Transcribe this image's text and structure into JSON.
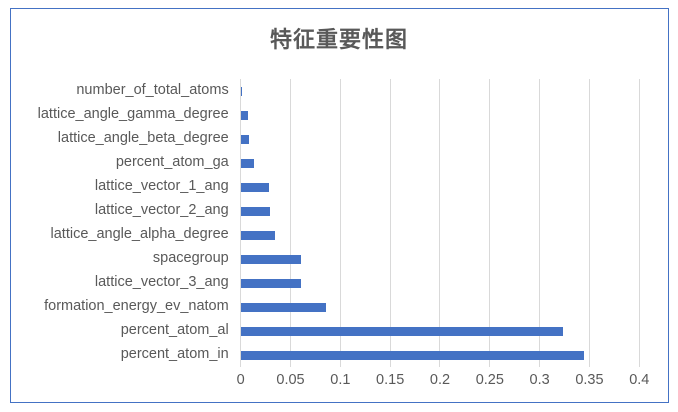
{
  "chart_data": {
    "type": "bar",
    "orientation": "horizontal",
    "title": "特征重要性图",
    "xlabel": "",
    "ylabel": "",
    "xlim": [
      0,
      0.4
    ],
    "x_ticks": [
      "0",
      "0.05",
      "0.1",
      "0.15",
      "0.2",
      "0.25",
      "0.3",
      "0.35",
      "0.4"
    ],
    "grid": "vertical",
    "legend": "none",
    "bar_color": "#4472c4",
    "categories": [
      "number_of_total_atoms",
      "lattice_angle_gamma_degree",
      "lattice_angle_beta_degree",
      "percent_atom_ga",
      "lattice_vector_1_ang",
      "lattice_vector_2_ang",
      "lattice_angle_alpha_degree",
      "spacegroup",
      "lattice_vector_3_ang",
      "formation_energy_ev_natom",
      "percent_atom_al",
      "percent_atom_in"
    ],
    "values": [
      0.0013,
      0.0073,
      0.0083,
      0.0134,
      0.0284,
      0.0294,
      0.0344,
      0.0605,
      0.0605,
      0.0857,
      0.323,
      0.345
    ]
  },
  "colors": {
    "border": "#4472c4",
    "bar": "#4472c4",
    "text": "#595959",
    "grid": "#d9d9d9"
  }
}
